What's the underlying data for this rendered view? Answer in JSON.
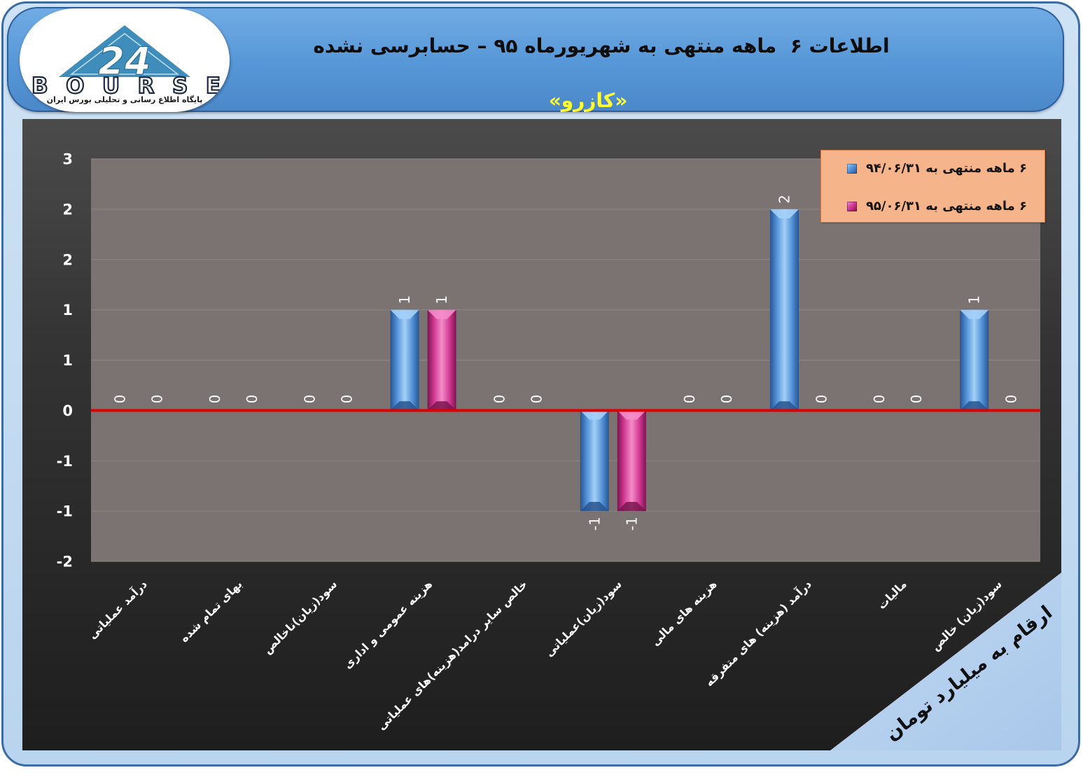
{
  "header": {
    "title": "اطلاعات ۶  ماهه منتهی به شهریورماه ۹۵ – حسابرسی نشده",
    "company": "«کازرو»"
  },
  "logo": {
    "number": "24",
    "brand": "BOURSE",
    "tagline": "پایگاه اطلاع رسانی و تحلیلی بورس ایران"
  },
  "unit_note": "ارقام به میلیارد تومان",
  "colors": {
    "company": "#ffff33",
    "zero_line": "#e00000",
    "plot_bg": "#7a7371",
    "legend_bg": "#f6b48b",
    "note_bg": "#a9c7ea"
  },
  "chart_data": {
    "type": "bar",
    "categories": [
      "درآمد عملیاتی",
      "بهای تمام شده",
      "سود(زیان)ناخالص",
      "هزینه عمومی و اداری",
      "خالص سایر درامد(هزینه)های عملیاتی",
      "سود(زیان)عملیاتی",
      "هزینه های مالی",
      "درآمد (هزینه) های متفرقه",
      "مالیات",
      "سود(زیان) خالص"
    ],
    "series": [
      {
        "name": "۶ ماهه منتهی به ۹۴/۰۶/۳۱",
        "color": "#4f8fd6",
        "color_light": "#a3d0f7",
        "color_dark": "#28548f",
        "values": [
          0,
          0,
          0,
          1,
          0,
          -1,
          0,
          2,
          0,
          1
        ],
        "labels": [
          "0",
          "0",
          "0",
          "1",
          "0",
          "-1",
          "0",
          "2",
          "0",
          "1"
        ]
      },
      {
        "name": "۶ ماهه منتهی به ۹۵/۰۶/۳۱",
        "color": "#cf3690",
        "color_light": "#f58cc9",
        "color_dark": "#7a1450",
        "values": [
          0,
          0,
          0,
          1,
          0,
          -1,
          0,
          0,
          0,
          0
        ],
        "labels": [
          "0",
          "0",
          "0",
          "1",
          "0",
          "-1",
          "0",
          "0",
          "0",
          "0"
        ]
      }
    ],
    "ylim": [
      -1.5,
      2.5
    ],
    "ytick_values": [
      2.5,
      2,
      1.5,
      1,
      0.5,
      0,
      -0.5,
      -1,
      -1.5
    ],
    "ytick_labels": [
      "3",
      "2",
      "2",
      "1",
      "1",
      "0",
      "-1",
      "-1",
      "-2"
    ],
    "grid": true,
    "legend": "top-right"
  }
}
